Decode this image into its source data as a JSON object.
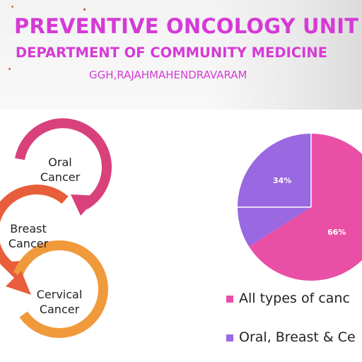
{
  "header": {
    "title": "PREVENTIVE ONCOLOGY UNIT",
    "subtitle": "DEPARTMENT OF COMMUNITY MEDICINE",
    "location": "GGH,RAJAHMAHENDRAVARAM"
  },
  "cycle": {
    "items": [
      {
        "label_line1": "Oral",
        "label_line2": "Cancer",
        "color": "#d8417b"
      },
      {
        "label_line1": "Breast",
        "label_line2": "Cancer",
        "color": "#e95e3a"
      },
      {
        "label_line1": "Cervical",
        "label_line2": "Cancer",
        "color": "#f09a3c"
      }
    ]
  },
  "chart_data": {
    "type": "pie",
    "slices": [
      {
        "label": "66%",
        "value": 66,
        "color": "#ea4fa6"
      },
      {
        "label": "34%",
        "value": 34,
        "color": "#9a68e0"
      }
    ],
    "legend": [
      {
        "text": "All types of canc",
        "color": "#ea4fa6"
      },
      {
        "text": "Oral, Breast & Ce",
        "color": "#9a68e0"
      }
    ]
  }
}
